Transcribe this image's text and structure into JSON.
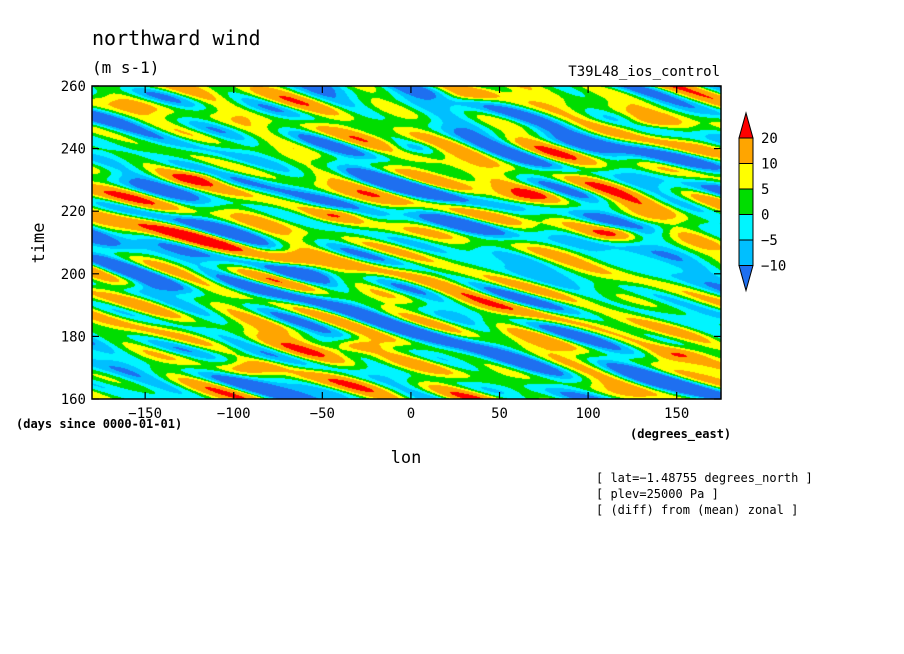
{
  "chart_data": {
    "type": "heatmap",
    "title": "northward wind",
    "units": "(m s-1)",
    "experiment": "T39L48_ios_control",
    "xlabel": "lon",
    "ylabel": "time",
    "x_units": "(degrees_east)",
    "y_units": "(days since 0000-01-01)",
    "xlim": [
      -180,
      175
    ],
    "ylim": [
      160,
      260
    ],
    "x_ticks": [
      -150,
      -100,
      -50,
      0,
      50,
      100,
      150
    ],
    "x_tick_labels": [
      "−150",
      "−100",
      "−50",
      "0",
      "50",
      "100",
      "150"
    ],
    "y_ticks": [
      160,
      180,
      200,
      220,
      240,
      260
    ],
    "y_tick_labels": [
      "160",
      "180",
      "200",
      "220",
      "240",
      "260"
    ],
    "colorbar": {
      "levels": [
        -10,
        -5,
        0,
        5,
        10,
        20
      ],
      "level_labels": [
        "−10",
        "−5",
        "0",
        "5",
        "10",
        "20"
      ],
      "colors": [
        "#1e6ff0",
        "#00bfff",
        "#00f5ff",
        "#00dd00",
        "#ffff00",
        "#ffa500",
        "#ff0000"
      ]
    },
    "notes": [
      "[ lat=−1.48755 degrees_north ]",
      "[ plev=25000 Pa ]",
      "[ (diff) from (mean) zonal ]"
    ],
    "features": [
      {
        "lon": -90,
        "time": 170,
        "value": 20
      },
      {
        "lon": -70,
        "time": 205,
        "value": 18
      },
      {
        "lon": -30,
        "time": 177,
        "value": 20
      },
      {
        "lon": -40,
        "time": 219,
        "value": 15
      },
      {
        "lon": -120,
        "time": 231,
        "value": 15
      },
      {
        "lon": 115,
        "time": 213,
        "value": 20
      },
      {
        "lon": 30,
        "time": 257,
        "value": 18
      },
      {
        "lon": 65,
        "time": 225,
        "value": 15
      },
      {
        "lon": 130,
        "time": 248,
        "value": 14
      },
      {
        "lon": 150,
        "time": 174,
        "value": 12
      },
      {
        "lon": 0,
        "time": 240,
        "value": -12
      },
      {
        "lon": -60,
        "time": 200,
        "value": -10
      },
      {
        "lon": 140,
        "time": 215,
        "value": -12
      },
      {
        "lon": -150,
        "time": 195,
        "value": -10
      }
    ]
  }
}
